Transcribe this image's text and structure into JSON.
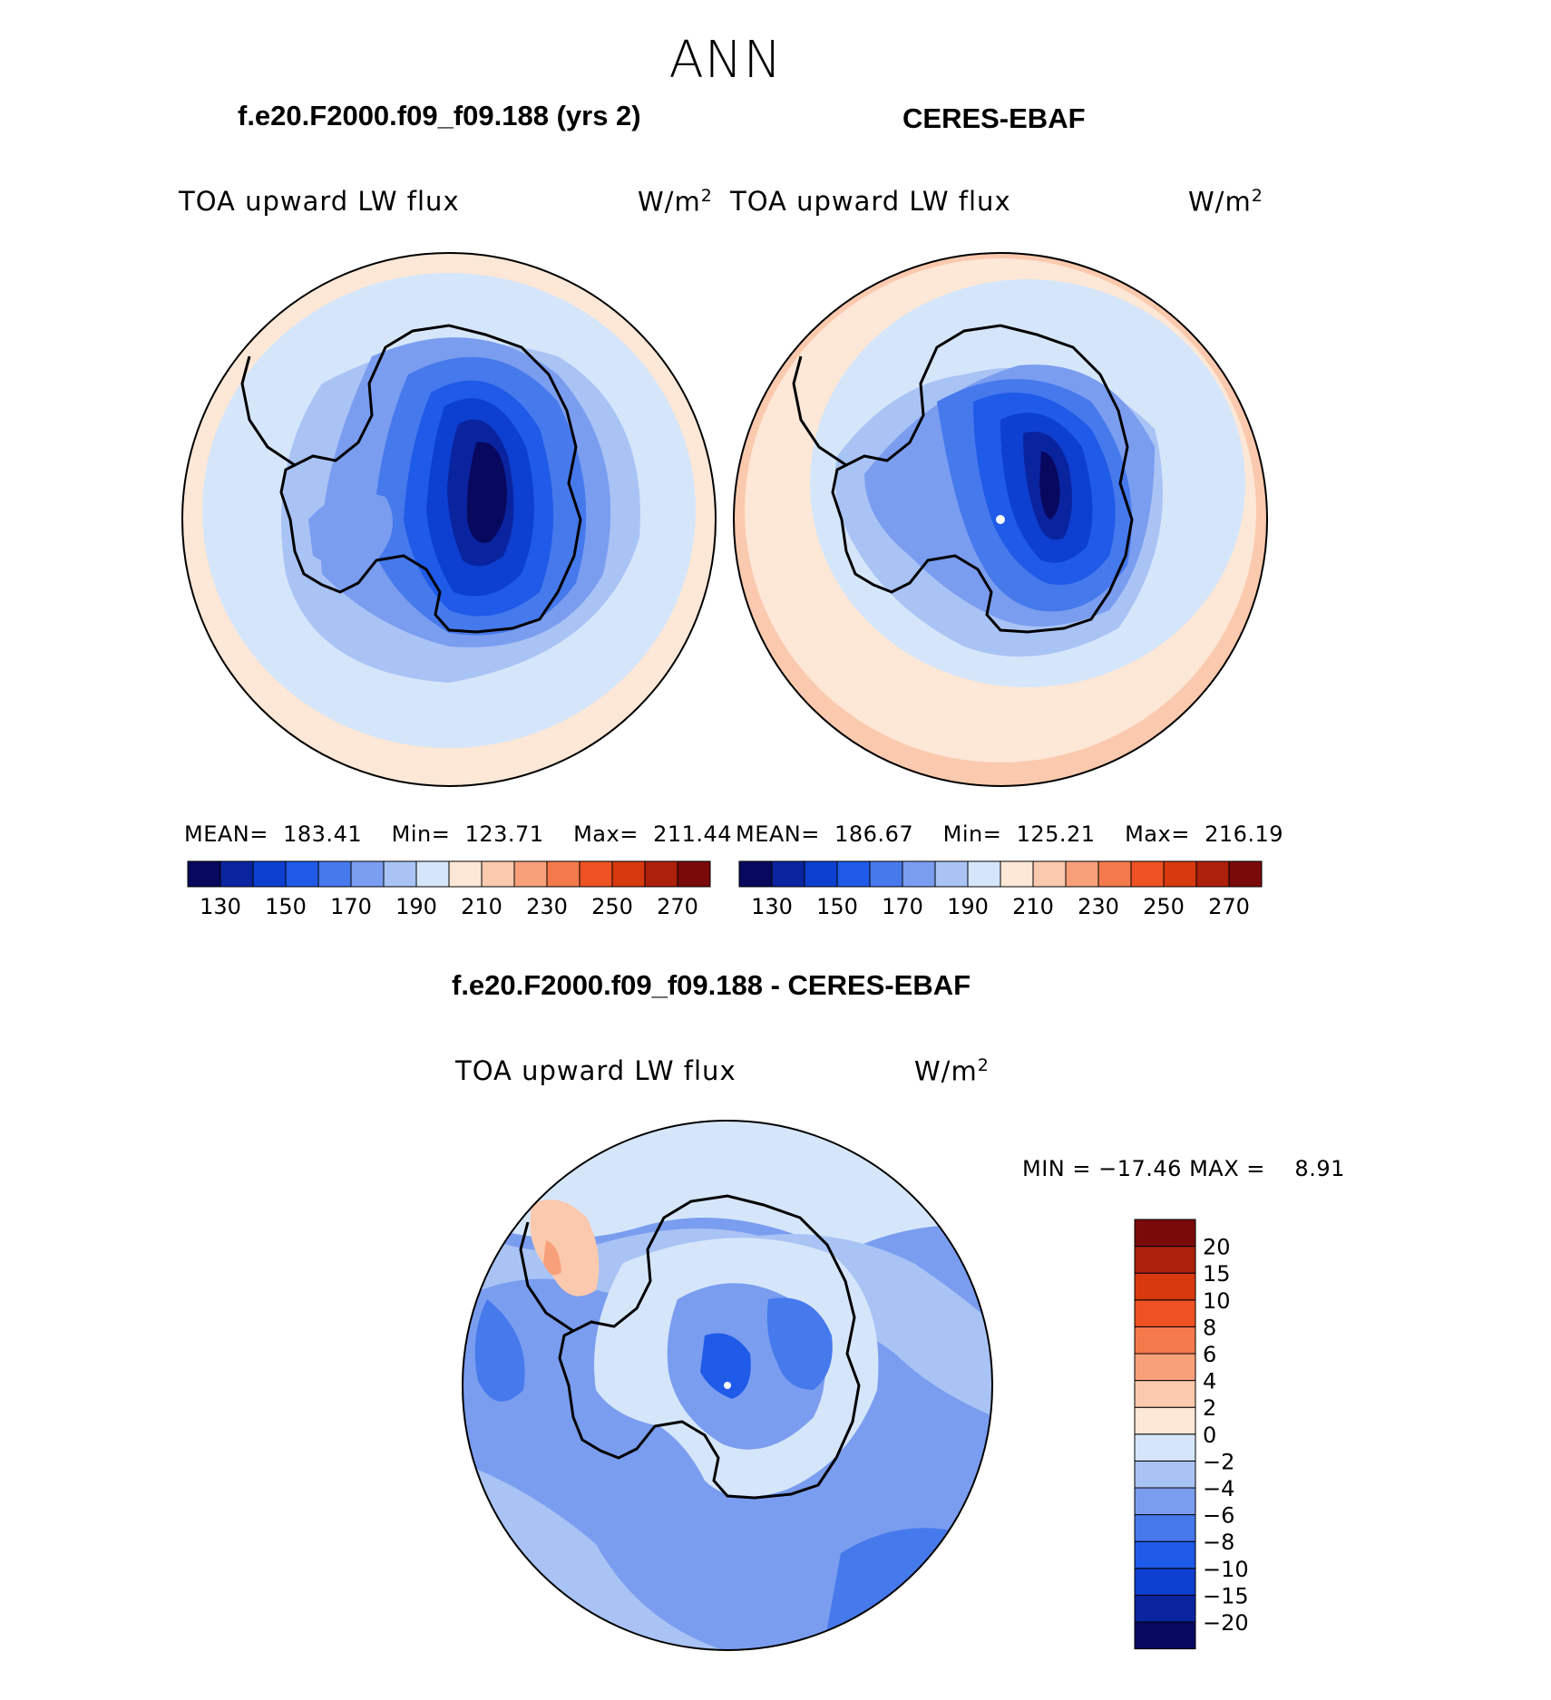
{
  "season": "ANN",
  "panels": {
    "left": {
      "title": "f.e20.F2000.f09_f09.188 (yrs 2)",
      "variable": "TOA upward LW flux",
      "units_base": "W/m",
      "units_exp": "2",
      "stats": {
        "mean_label": "MEAN=",
        "mean": "183.41",
        "min_label": "Min=",
        "min": "123.71",
        "max_label": "Max=",
        "max": "211.44"
      }
    },
    "right": {
      "title": "CERES-EBAF",
      "variable": "TOA upward LW flux",
      "units_base": "W/m",
      "units_exp": "2",
      "stats": {
        "mean_label": "MEAN=",
        "mean": "186.67",
        "min_label": "Min=",
        "min": "125.21",
        "max_label": "Max=",
        "max": "216.19"
      }
    },
    "diff": {
      "title": "f.e20.F2000.f09_f09.188 - CERES-EBAF",
      "variable": "TOA upward LW flux",
      "units_base": "W/m",
      "units_exp": "2",
      "minmax": {
        "min_label": "MIN =",
        "min": "−17.46",
        "max_label": "MAX =",
        "max": "8.91"
      }
    }
  },
  "colorbar_abs": {
    "colors": [
      "#08085e",
      "#0a24a0",
      "#0d3fd0",
      "#1f5ae8",
      "#4679ec",
      "#7a9df0",
      "#a9c3f5",
      "#d5e6fb",
      "#fde7d6",
      "#fbc9ae",
      "#f8a07a",
      "#f47a4b",
      "#ee5222",
      "#d8390f",
      "#ad200a",
      "#7a0a0a"
    ],
    "tick_labels": [
      "130",
      "150",
      "170",
      "190",
      "210",
      "230",
      "250",
      "270"
    ]
  },
  "colorbar_diff": {
    "colors": [
      "#08085e",
      "#0a24a0",
      "#0d3fd0",
      "#1f5ae8",
      "#4679ec",
      "#7a9df0",
      "#a9c3f5",
      "#d5e6fb",
      "#fde7d6",
      "#fbc9ae",
      "#f8a07a",
      "#f47a4b",
      "#ee5222",
      "#d8390f",
      "#ad200a",
      "#7a0a0a"
    ],
    "tick_labels": [
      "−20",
      "−15",
      "−10",
      "−8",
      "−6",
      "−4",
      "−2",
      "0",
      "2",
      "4",
      "6",
      "8",
      "10",
      "15",
      "20"
    ]
  }
}
